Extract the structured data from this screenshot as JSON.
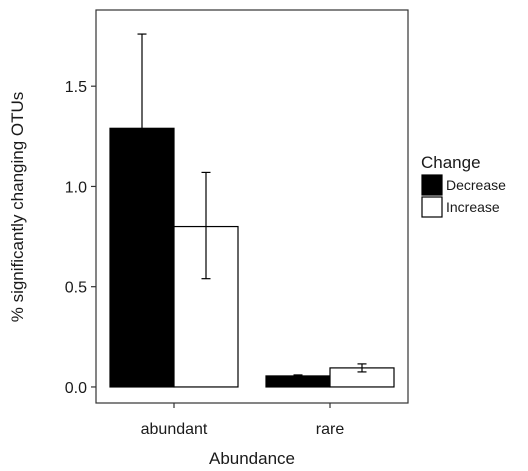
{
  "chart_data": {
    "type": "bar",
    "xlabel": "Abundance",
    "ylabel": "% significantly changing OTUs",
    "categories": [
      "abundant",
      "rare"
    ],
    "ylim": [
      -0.08,
      1.88
    ],
    "yticks": [
      0.0,
      0.5,
      1.0,
      1.5
    ],
    "ytick_labels": [
      "0.0",
      "0.5",
      "1.0",
      "1.5"
    ],
    "grid": false,
    "legend": {
      "title": "Change",
      "position": "right"
    },
    "series": [
      {
        "name": "Decrease",
        "color": "#000000",
        "values": [
          1.29,
          0.055
        ],
        "error": [
          [
            0.82,
            1.76
          ],
          [
            0.05,
            0.06
          ]
        ]
      },
      {
        "name": "Increase",
        "color": "#ffffff",
        "values": [
          0.8,
          0.095
        ],
        "error": [
          [
            0.54,
            1.07
          ],
          [
            0.075,
            0.115
          ]
        ]
      }
    ]
  }
}
